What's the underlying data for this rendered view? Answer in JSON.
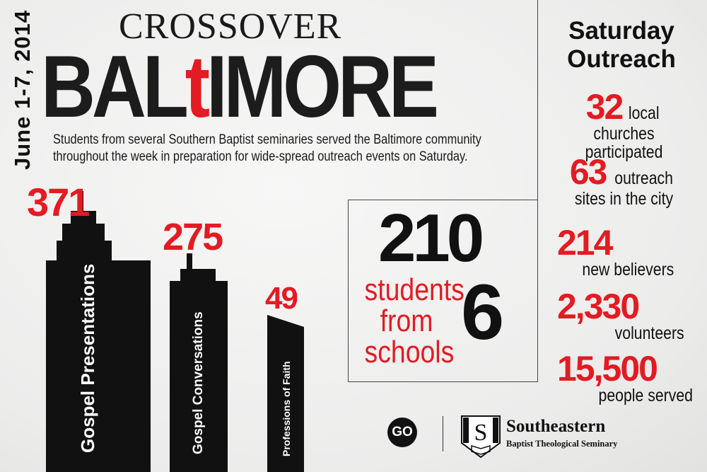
{
  "header": {
    "date": "June 1-7, 2014",
    "title_top": "CROSSOVER",
    "title_main_before": "BAL",
    "title_main_cross": "t",
    "title_main_after": "IMORE",
    "description": "Students from several Southern Baptist seminaries served the Baltimore community throughout the week in preparation for wide-spread outreach events on Saturday."
  },
  "buildings": [
    {
      "value": "371",
      "label": "Gospel Presentations"
    },
    {
      "value": "275",
      "label": "Gospel Conversations"
    },
    {
      "value": "49",
      "label": "Professions of Faith"
    }
  ],
  "center": {
    "students_count": "210",
    "students_label": "students from",
    "schools_count": "6",
    "schools_label": "schools",
    "line1": "students",
    "line2": "from",
    "line3": "schools"
  },
  "saturday": {
    "title": "Saturday Outreach",
    "stats": [
      {
        "value": "32",
        "label_inline": "local",
        "label_line": "churches participated"
      },
      {
        "value": "63",
        "label_inline": "outreach",
        "label_line": "sites in the city"
      },
      {
        "value": "214",
        "label_inline": "",
        "label_line": "new believers"
      },
      {
        "value": "2,330",
        "label_inline": "",
        "label_line": "volunteers"
      },
      {
        "value": "15,500",
        "label_inline": "",
        "label_line": "people served"
      }
    ]
  },
  "footer": {
    "go_logo": "GO",
    "seal_letter": "S",
    "seminary_name": "Southeastern",
    "seminary_sub": "Baptist Theological Seminary"
  },
  "colors": {
    "accent": "#e31b23",
    "ink": "#111111",
    "background": "#ececeb"
  }
}
